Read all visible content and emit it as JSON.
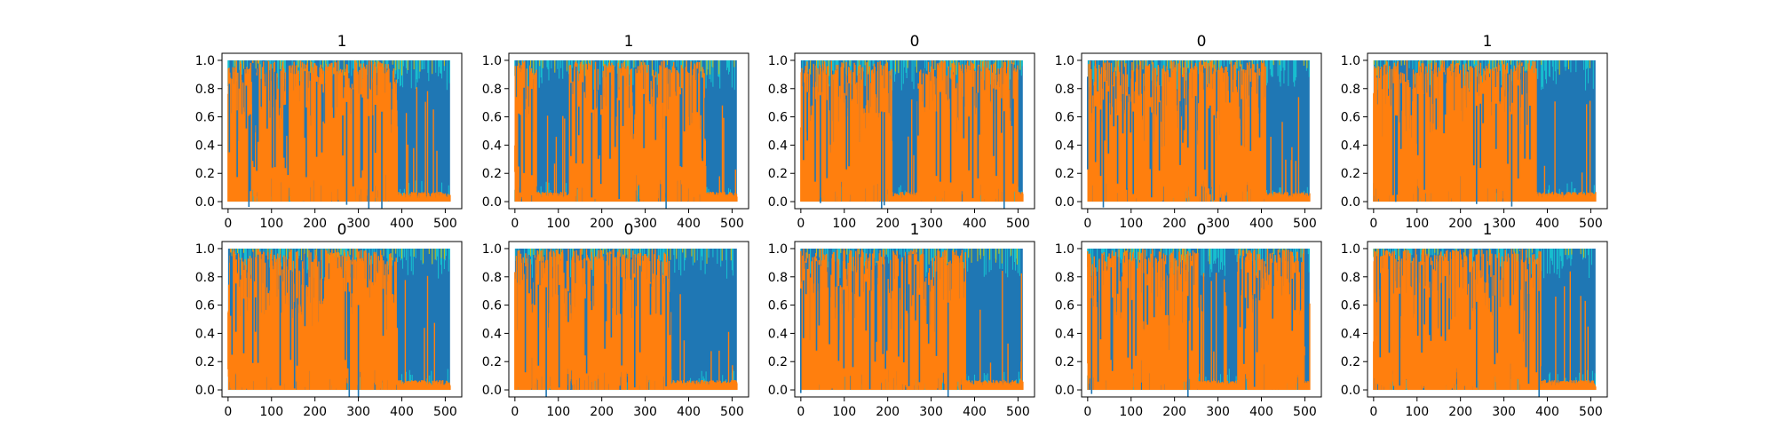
{
  "chart_data": {
    "type": "line",
    "layout": "2x5 grid of small multiples",
    "xlim": [
      -14,
      538
    ],
    "ylim": [
      -0.05,
      1.05
    ],
    "xticks": [
      0,
      100,
      200,
      300,
      400,
      500
    ],
    "yticks": [
      "0.0",
      "0.2",
      "0.4",
      "0.6",
      "0.8",
      "1.0"
    ],
    "grid": false,
    "legend": "none",
    "colors": {
      "blue": "#1f77b4",
      "orange": "#ff7f0e",
      "cyan": "#17becf",
      "olive": "#bcbd22",
      "green": "#2ca02c",
      "pink": "#e377c2",
      "purple": "#9467bd"
    },
    "panels": [
      {
        "title": "1",
        "split": 390,
        "dense": [
          [
            0,
            390
          ]
        ]
      },
      {
        "title": "1",
        "split": 440,
        "dense": [
          [
            0,
            50
          ],
          [
            125,
            440
          ]
        ]
      },
      {
        "title": "0",
        "split": 500,
        "dense": [
          [
            0,
            210
          ],
          [
            270,
            500
          ]
        ]
      },
      {
        "title": "0",
        "split": 410,
        "dense": [
          [
            0,
            410
          ]
        ]
      },
      {
        "title": "1",
        "split": 375,
        "dense": [
          [
            0,
            375
          ]
        ]
      },
      {
        "title": "0",
        "split": 390,
        "dense": [
          [
            0,
            390
          ]
        ]
      },
      {
        "title": "0",
        "split": 360,
        "dense": [
          [
            0,
            360
          ]
        ]
      },
      {
        "title": "1",
        "split": 380,
        "dense": [
          [
            0,
            380
          ]
        ]
      },
      {
        "title": "0",
        "split": 500,
        "dense": [
          [
            0,
            255
          ],
          [
            345,
            500
          ]
        ]
      },
      {
        "title": "1",
        "split": 385,
        "dense": [
          [
            0,
            385
          ]
        ]
      }
    ]
  }
}
